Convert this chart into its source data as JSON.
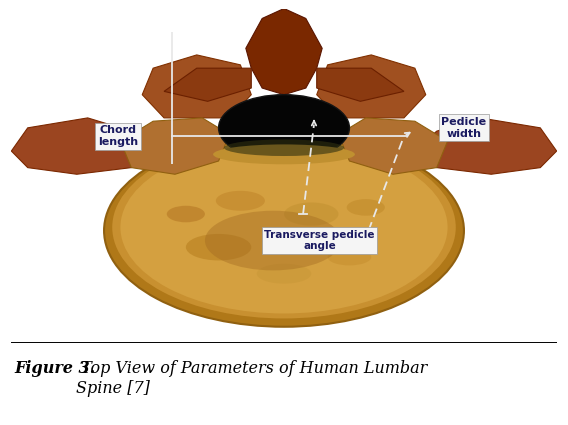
{
  "fig_width": 5.68,
  "fig_height": 4.25,
  "dpi": 100,
  "bg_color": "#ffffff",
  "caption_bold": "Figure 3.",
  "caption_italic": " Top View of Parameters of Human Lumbar\nSpine [7]",
  "caption_fontsize": 11.5,
  "label_chord": "Chord\nlength",
  "label_pedicle": "Pedicle\nwidth",
  "label_transverse": "Transverse pedicle\nangle",
  "label_fontsize": 8.0,
  "image_bg": "#060606",
  "body_color1": "#c8922a",
  "body_color2": "#d4a040",
  "body_color3": "#c09030",
  "arch_color1": "#8b3a0a",
  "arch_color2": "#9b4520",
  "arch_color3": "#7a2800",
  "foramen_color": "#080808",
  "line_color": "#e8e8e8",
  "label_bg": "#f5f5f5",
  "border_gray": "#999999"
}
